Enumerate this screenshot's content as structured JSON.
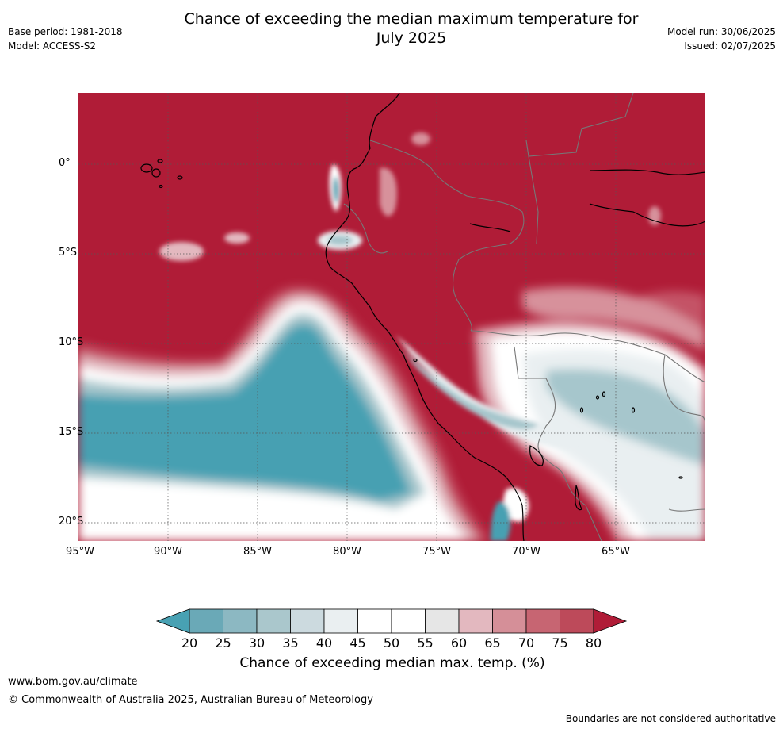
{
  "header": {
    "title_line1": "Chance of exceeding the median maximum temperature for",
    "title_line2": "July 2025",
    "base_period": "Base period: 1981-2018",
    "model": "Model: ACCESS-S2",
    "model_run": "Model run: 30/06/2025",
    "issued": "Issued: 02/07/2025"
  },
  "map": {
    "lat_labels": [
      "0°",
      "5°S",
      "10°S",
      "15°S",
      "20°S"
    ],
    "lon_labels": [
      "95°W",
      "90°W",
      "85°W",
      "80°W",
      "75°W",
      "70°W",
      "65°W"
    ],
    "colors": {
      "very_high": "#b01c37",
      "high": "#c45366",
      "medium_high": "#d7919b",
      "neutral": "#ffffff",
      "low_light": "#e9eff1",
      "low_mid": "#a6c6cc",
      "very_low": "#47a0b2",
      "ocean_grid": "#555555",
      "coast": "#000000",
      "border": "#777777"
    }
  },
  "colorbar": {
    "title": "Chance of exceeding median max. temp. (%)",
    "ticks": [
      "20",
      "25",
      "30",
      "35",
      "40",
      "45",
      "50",
      "55",
      "60",
      "65",
      "70",
      "75",
      "80"
    ],
    "colors": [
      "#48a1b3",
      "#6aa9b7",
      "#8cb8c2",
      "#aac7cc",
      "#ccdadf",
      "#eaeff1",
      "#ffffff",
      "#ffffff",
      "#e6e6e6",
      "#e3b8bf",
      "#d58f98",
      "#c76572",
      "#bd4a5a",
      "#b01c37"
    ]
  },
  "footer": {
    "website": "www.bom.gov.au/climate",
    "copyright": "© Commonwealth of Australia 2025, Australian Bureau of Meteorology",
    "disclaimer": "Boundaries are not considered authoritative"
  }
}
